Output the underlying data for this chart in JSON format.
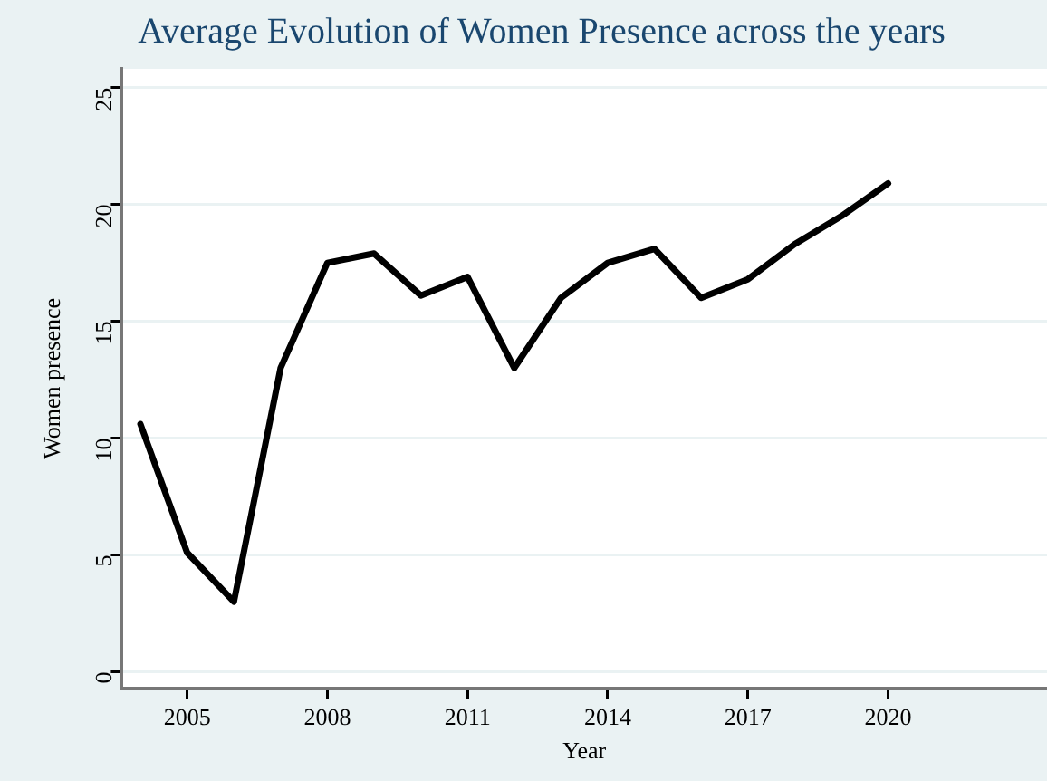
{
  "chart_data": {
    "type": "line",
    "title": "Average Evolution of Women Presence across the years",
    "xlabel": "Year",
    "ylabel": "Women presence",
    "x": [
      2004,
      2005,
      2006,
      2007,
      2008,
      2009,
      2010,
      2011,
      2012,
      2013,
      2014,
      2015,
      2016,
      2017,
      2018,
      2019,
      2020
    ],
    "series": [
      {
        "color": "#000000",
        "values": [
          10.6,
          5.1,
          3.0,
          13.0,
          17.5,
          17.9,
          16.1,
          16.9,
          13.0,
          16.0,
          17.5,
          18.1,
          16.0,
          16.8,
          18.3,
          19.5,
          20.9
        ]
      }
    ],
    "xlim": [
      2003.6,
      2023.4
    ],
    "xticks": [
      2005,
      2008,
      2011,
      2014,
      2017,
      2020
    ],
    "ylim": [
      -0.7,
      25.8
    ],
    "yticks": [
      0,
      5,
      10,
      15,
      20,
      25
    ],
    "grid": "y",
    "legend": false,
    "marker": "none",
    "line_style": "solid"
  }
}
